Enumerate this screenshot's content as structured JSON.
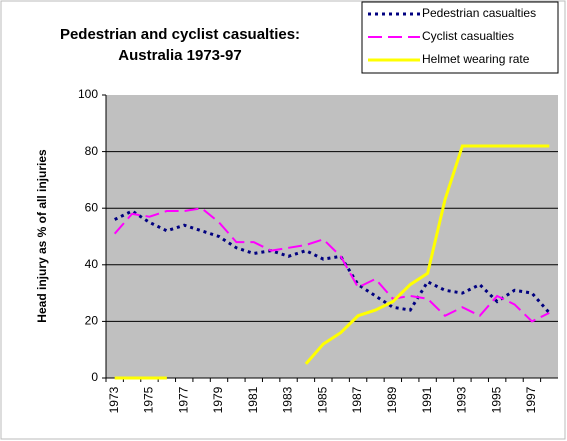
{
  "chart_data": {
    "type": "line",
    "title": "Pedestrian and cyclist casualties:",
    "subtitle": "Australia 1973-97",
    "y_label": "Head injury as % of all injuries",
    "categories": [
      "1973",
      null,
      "1975",
      null,
      "1977",
      null,
      "1979",
      null,
      "1981",
      null,
      "1983",
      null,
      "1985",
      null,
      "1987",
      null,
      "1989",
      null,
      "1991",
      null,
      "1993",
      null,
      "1995",
      null,
      "1997",
      null
    ],
    "series": [
      {
        "name": "Pedestrian casualties",
        "color": "#000080",
        "dash": "dotted",
        "values": [
          56,
          59,
          55,
          52,
          54,
          52,
          50,
          46,
          44,
          45,
          43,
          45,
          42,
          43,
          33,
          29,
          25,
          24,
          34,
          31,
          30,
          33,
          27,
          31,
          30,
          23
        ]
      },
      {
        "name": "Cyclist casualties",
        "color": "#ff00ff",
        "dash": "dashed",
        "values": [
          51,
          58,
          57,
          59,
          59,
          60,
          55,
          48,
          48,
          45,
          46,
          47,
          49,
          43,
          32,
          35,
          28,
          29,
          28,
          22,
          25,
          22,
          29,
          26,
          20,
          23
        ]
      },
      {
        "name": "Helmet wearing rate",
        "color": "#ffff00",
        "dash": "solid",
        "values": [
          0,
          0,
          0,
          0,
          null,
          null,
          null,
          null,
          null,
          null,
          null,
          5,
          12,
          16,
          22,
          24,
          27,
          33,
          37,
          63,
          82,
          82,
          82,
          82,
          82,
          82
        ]
      }
    ],
    "ylim": [
      0,
      100
    ],
    "yticks": [
      0,
      20,
      40,
      60,
      80,
      100
    ],
    "grid": true,
    "legend": "top-right"
  }
}
